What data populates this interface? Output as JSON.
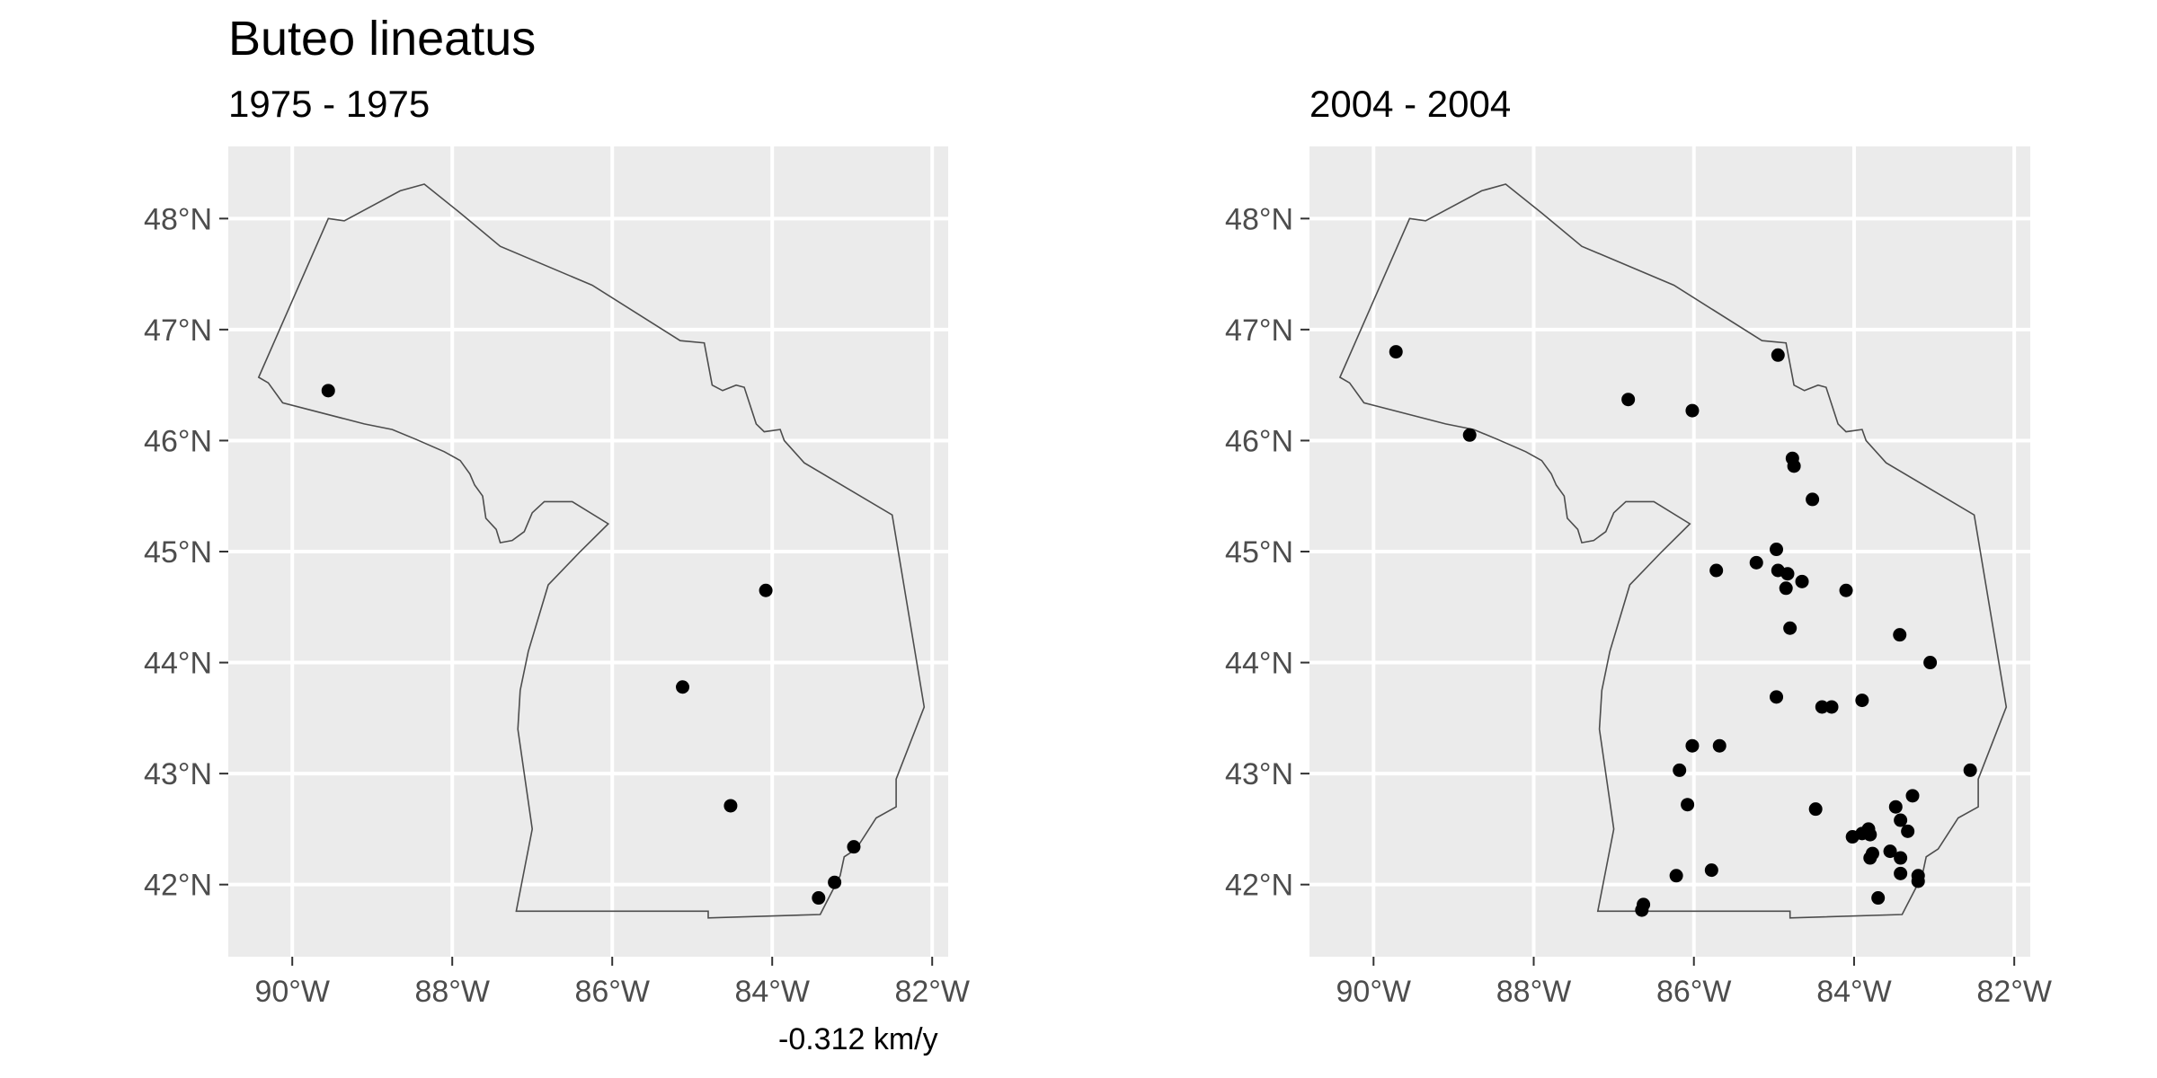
{
  "title": "Buteo lineatus",
  "footnote": "-0.312 km/y",
  "chart_data": [
    {
      "type": "scatter",
      "subtitle": "1975 - 1975",
      "xlim": [
        -90.8,
        -81.8
      ],
      "ylim": [
        41.35,
        48.65
      ],
      "x_ticks": [
        -90,
        -88,
        -86,
        -84,
        -82
      ],
      "x_tick_labels": [
        "90°W",
        "88°W",
        "86°W",
        "84°W",
        "82°W"
      ],
      "y_ticks": [
        42,
        43,
        44,
        45,
        46,
        47,
        48
      ],
      "y_tick_labels": [
        "42°N",
        "43°N",
        "44°N",
        "45°N",
        "46°N",
        "47°N",
        "48°N"
      ],
      "grid": true,
      "points": [
        [
          -89.55,
          46.45
        ],
        [
          -84.08,
          44.65
        ],
        [
          -85.12,
          43.78
        ],
        [
          -84.52,
          42.71
        ],
        [
          -82.98,
          42.34
        ],
        [
          -83.22,
          42.02
        ],
        [
          -83.42,
          41.88
        ]
      ]
    },
    {
      "type": "scatter",
      "subtitle": "2004 - 2004",
      "xlim": [
        -90.8,
        -81.8
      ],
      "ylim": [
        41.35,
        48.65
      ],
      "x_ticks": [
        -90,
        -88,
        -86,
        -84,
        -82
      ],
      "x_tick_labels": [
        "90°W",
        "88°W",
        "86°W",
        "84°W",
        "82°W"
      ],
      "y_ticks": [
        42,
        43,
        44,
        45,
        46,
        47,
        48
      ],
      "y_tick_labels": [
        "42°N",
        "43°N",
        "44°N",
        "45°N",
        "46°N",
        "47°N",
        "48°N"
      ],
      "grid": true,
      "points": [
        [
          -89.72,
          46.8
        ],
        [
          -84.95,
          46.77
        ],
        [
          -86.82,
          46.37
        ],
        [
          -86.02,
          46.27
        ],
        [
          -88.8,
          46.05
        ],
        [
          -84.77,
          45.84
        ],
        [
          -84.75,
          45.77
        ],
        [
          -84.52,
          45.47
        ],
        [
          -84.97,
          45.02
        ],
        [
          -85.22,
          44.9
        ],
        [
          -85.72,
          44.83
        ],
        [
          -84.95,
          44.83
        ],
        [
          -84.83,
          44.8
        ],
        [
          -84.65,
          44.73
        ],
        [
          -84.85,
          44.67
        ],
        [
          -84.1,
          44.65
        ],
        [
          -84.8,
          44.31
        ],
        [
          -83.43,
          44.25
        ],
        [
          -83.05,
          44.0
        ],
        [
          -84.97,
          43.69
        ],
        [
          -83.9,
          43.66
        ],
        [
          -84.4,
          43.6
        ],
        [
          -84.28,
          43.6
        ],
        [
          -86.02,
          43.25
        ],
        [
          -85.68,
          43.25
        ],
        [
          -86.18,
          43.03
        ],
        [
          -82.55,
          43.03
        ],
        [
          -83.27,
          42.8
        ],
        [
          -86.08,
          42.72
        ],
        [
          -83.48,
          42.7
        ],
        [
          -84.48,
          42.68
        ],
        [
          -83.42,
          42.58
        ],
        [
          -83.82,
          42.5
        ],
        [
          -83.33,
          42.48
        ],
        [
          -83.9,
          42.46
        ],
        [
          -83.8,
          42.45
        ],
        [
          -84.02,
          42.43
        ],
        [
          -83.55,
          42.3
        ],
        [
          -83.77,
          42.28
        ],
        [
          -83.8,
          42.24
        ],
        [
          -83.42,
          42.24
        ],
        [
          -85.78,
          42.13
        ],
        [
          -83.42,
          42.1
        ],
        [
          -86.22,
          42.08
        ],
        [
          -83.2,
          42.08
        ],
        [
          -83.2,
          42.03
        ],
        [
          -83.7,
          41.88
        ],
        [
          -86.63,
          41.82
        ],
        [
          -86.65,
          41.77
        ]
      ]
    }
  ]
}
